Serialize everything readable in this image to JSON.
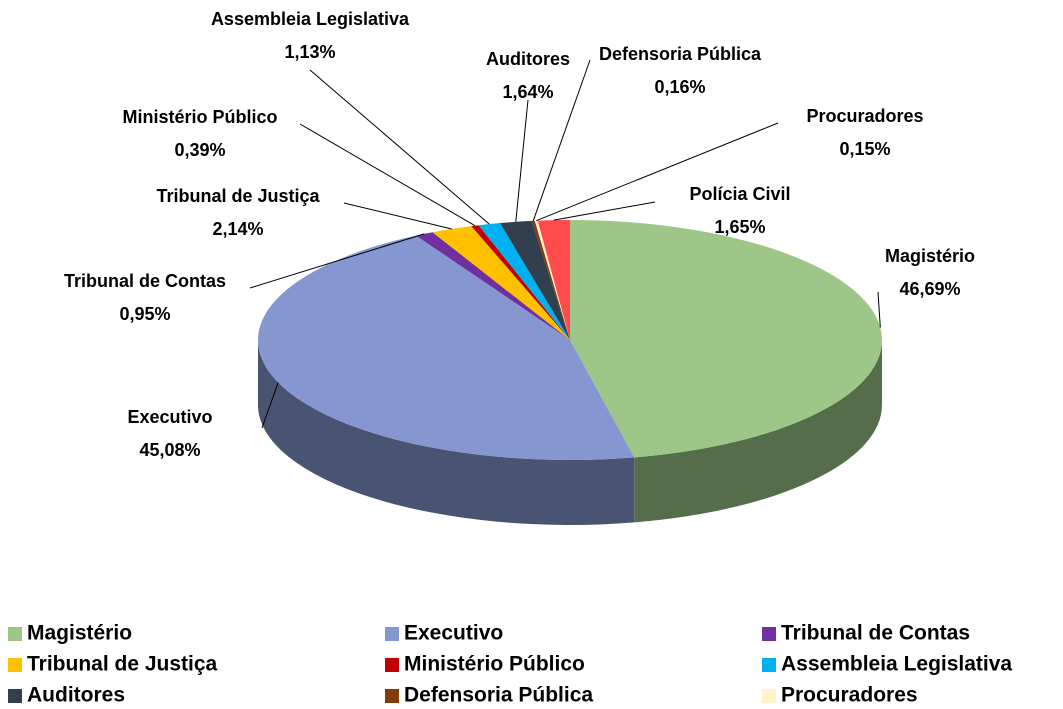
{
  "chart_data": {
    "type": "pie",
    "categories": [
      "Magistério",
      "Executivo",
      "Tribunal de Contas",
      "Tribunal de Justiça",
      "Ministério Público",
      "Assembleia Legislativa",
      "Auditores",
      "Defensoria Pública",
      "Procuradores",
      "Polícia Civil"
    ],
    "values": [
      46.69,
      45.08,
      0.95,
      2.14,
      0.39,
      1.13,
      1.64,
      0.16,
      0.15,
      1.65
    ],
    "value_labels": [
      "46,69%",
      "45,08%",
      "0,95%",
      "2,14%",
      "0,39%",
      "1,13%",
      "1,64%",
      "0,16%",
      "0,15%",
      "1,65%"
    ],
    "colors": [
      "#9dc688",
      "#8596d0",
      "#7030a0",
      "#ffc000",
      "#c00000",
      "#00b0f0",
      "#323f4f",
      "#843c0c",
      "#fff2cc",
      "#ff4b4b"
    ],
    "legend": "bottom"
  }
}
